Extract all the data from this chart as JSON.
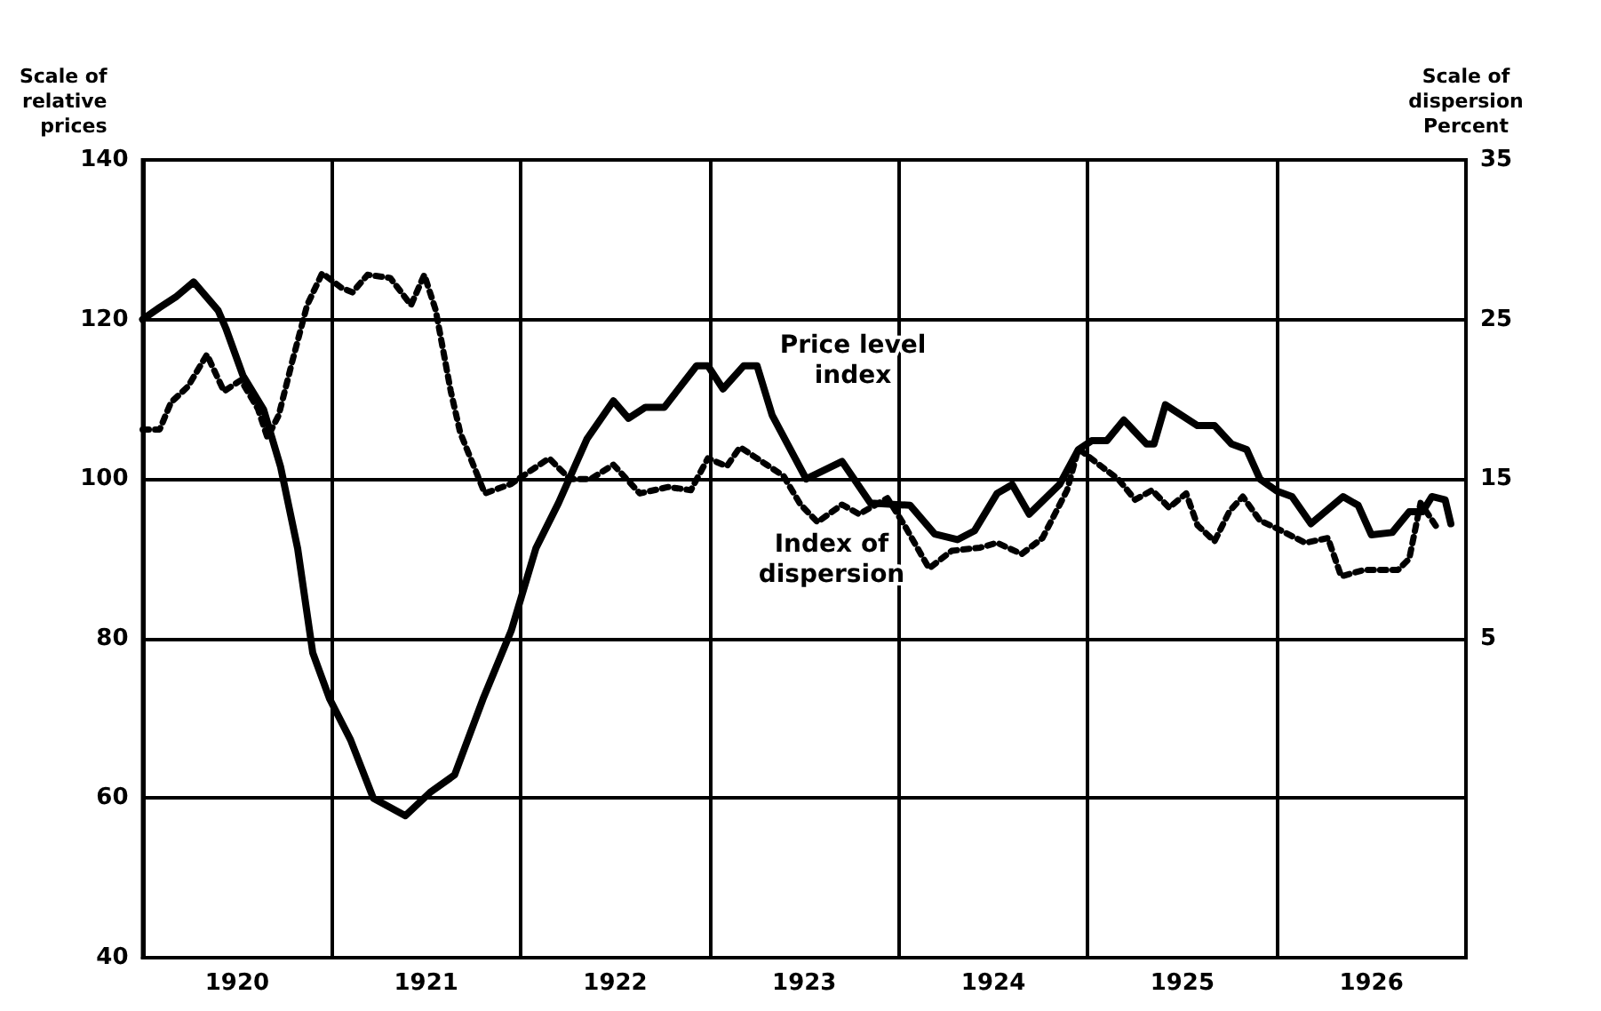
{
  "chart_data": {
    "type": "line",
    "ylabel": "Scale of\nrelative\nprices",
    "y2label": "Scale of\ndispersion\nPercent",
    "xlim": [
      1920,
      1927
    ],
    "xticks": [
      {
        "value": 1920.5,
        "label": "1920"
      },
      {
        "value": 1921,
        "label": null
      },
      {
        "value": 1921.5,
        "label": "1921"
      },
      {
        "value": 1922,
        "label": null
      },
      {
        "value": 1922.5,
        "label": "1922"
      },
      {
        "value": 1923,
        "label": null
      },
      {
        "value": 1923.5,
        "label": "1923"
      },
      {
        "value": 1924,
        "label": null
      },
      {
        "value": 1924.5,
        "label": "1924"
      },
      {
        "value": 1925,
        "label": null
      },
      {
        "value": 1925.5,
        "label": "1925"
      },
      {
        "value": 1926,
        "label": null
      },
      {
        "value": 1926.5,
        "label": "1926"
      }
    ],
    "ylim": [
      40,
      140
    ],
    "yticks": [
      40,
      60,
      80,
      100,
      120,
      140
    ],
    "y2lim": [
      -15,
      35
    ],
    "y2ticks": [
      5,
      15,
      25,
      35
    ],
    "grid": true,
    "marker": "none",
    "annotations": [
      "Price level\nindex",
      "Index of\ndispersion"
    ],
    "series": [
      {
        "color": "#000000",
        "line_style": "solid",
        "x": [
          1920.0,
          1920.09,
          1920.18,
          1920.27,
          1920.4,
          1920.44,
          1920.53,
          1920.64,
          1920.73,
          1920.82,
          1920.9,
          1920.99,
          1921.1,
          1921.22,
          1921.39,
          1921.52,
          1921.65,
          1921.8,
          1921.95,
          1922.08,
          1922.2,
          1922.35,
          1922.49,
          1922.57,
          1922.66,
          1922.76,
          1922.93,
          1922.99,
          1923.07,
          1923.18,
          1923.25,
          1923.33,
          1923.51,
          1923.7,
          1923.85,
          1924.06,
          1924.19,
          1924.31,
          1924.4,
          1924.52,
          1924.6,
          1924.69,
          1924.85,
          1924.95,
          1925.02,
          1925.1,
          1925.19,
          1925.31,
          1925.35,
          1925.41,
          1925.58,
          1925.67,
          1925.76,
          1925.84,
          1925.91,
          1926.0,
          1926.08,
          1926.18,
          1926.35,
          1926.43,
          1926.5,
          1926.61,
          1926.7,
          1926.77,
          1926.82,
          1926.89,
          1926.92
        ],
        "values": [
          120,
          121.5,
          122.9,
          124.7,
          121.1,
          118.9,
          113,
          108.7,
          101.5,
          91.3,
          78.2,
          72.4,
          67.3,
          60,
          57.8,
          60.7,
          62.9,
          72.4,
          81,
          91.3,
          97,
          105,
          109.8,
          107.6,
          109,
          109,
          114.2,
          114.2,
          111.3,
          114.2,
          114.2,
          108,
          100,
          102.2,
          97,
          96.7,
          93.1,
          92.4,
          93.5,
          98.2,
          99.3,
          95.6,
          99.3,
          103.7,
          104.8,
          104.8,
          107.4,
          104.4,
          104.4,
          109.3,
          106.7,
          106.7,
          104.4,
          103.7,
          100,
          98.5,
          97.8,
          94.4,
          97.8,
          96.7,
          93,
          93.3,
          95.9,
          95.9,
          97.8,
          97.4,
          94.4
        ]
      },
      {
        "color": "#000000",
        "line_style": "dotted",
        "axis": "y2",
        "x": [
          1920.0,
          1920.09,
          1920.15,
          1920.24,
          1920.34,
          1920.43,
          1920.52,
          1920.61,
          1920.66,
          1920.72,
          1920.79,
          1920.87,
          1920.95,
          1921.05,
          1921.11,
          1921.19,
          1921.31,
          1921.42,
          1921.49,
          1921.55,
          1921.63,
          1921.68,
          1921.81,
          1921.95,
          1922.15,
          1922.26,
          1922.37,
          1922.49,
          1922.63,
          1922.78,
          1922.9,
          1922.99,
          1923.09,
          1923.16,
          1923.3,
          1923.39,
          1923.48,
          1923.57,
          1923.7,
          1923.79,
          1923.94,
          1924.03,
          1924.16,
          1924.28,
          1924.43,
          1924.52,
          1924.65,
          1924.76,
          1924.89,
          1924.95,
          1925.07,
          1925.16,
          1925.25,
          1925.34,
          1925.43,
          1925.52,
          1925.58,
          1925.67,
          1925.75,
          1925.82,
          1925.91,
          1926.0,
          1926.15,
          1926.27,
          1926.34,
          1926.46,
          1926.64,
          1926.7,
          1926.76,
          1926.85
        ],
        "values": [
          18.1,
          18.1,
          19.8,
          20.8,
          22.8,
          20.5,
          21.2,
          19.4,
          17.6,
          19,
          22.3,
          25.9,
          27.9,
          27,
          26.7,
          27.8,
          27.6,
          25.9,
          27.8,
          25.6,
          20.5,
          17.9,
          14.1,
          14.7,
          16.3,
          15,
          15,
          15.9,
          14.1,
          14.5,
          14.3,
          16.3,
          15.8,
          17,
          15.9,
          15.2,
          13.4,
          12.3,
          13.4,
          12.8,
          13.8,
          12.1,
          9.4,
          10.5,
          10.7,
          11,
          10.3,
          11.3,
          14.3,
          16.9,
          15.8,
          15,
          13.7,
          14.3,
          13.2,
          14.1,
          12.1,
          11.1,
          13,
          13.9,
          12.4,
          11.9,
          11,
          11.3,
          8.9,
          9.3,
          9.3,
          10,
          13.5,
          11.9
        ]
      }
    ]
  }
}
